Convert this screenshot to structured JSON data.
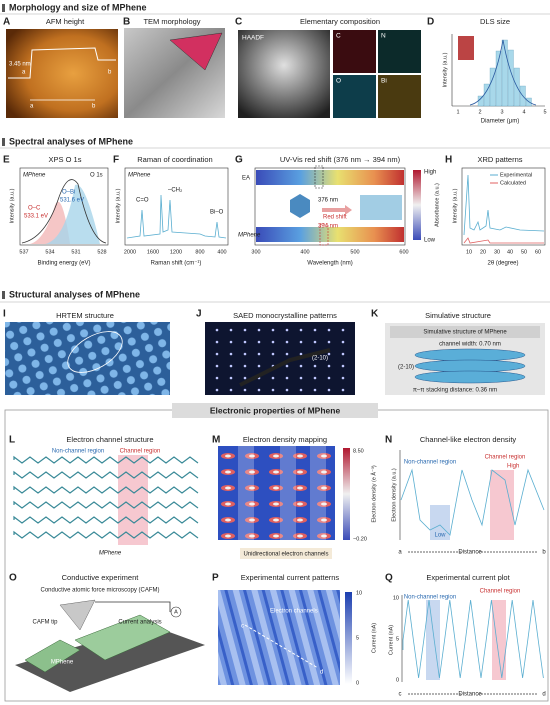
{
  "sections": [
    "Morphology and size of MPhene",
    "Spectral analyses of MPhene",
    "Structural analyses of MPhene",
    "Electronic properties of MPhene"
  ],
  "panels": {
    "A": {
      "letter": "A",
      "title": "AFM height",
      "notes": [
        "3.45 nm",
        "a",
        "b",
        "a",
        "b"
      ]
    },
    "B": {
      "letter": "B",
      "title": "TEM morphology"
    },
    "C": {
      "letter": "C",
      "title": "Elementary composition",
      "notes": [
        "HAADF",
        "C",
        "N",
        "O",
        "Bi"
      ]
    },
    "D": {
      "letter": "D",
      "title": "DLS size",
      "y_label": "Intensity (a.u.)",
      "x_label": "Diameter (μm)",
      "x_ticks": [
        "1",
        "2",
        "3",
        "4",
        "5"
      ]
    },
    "E": {
      "letter": "E",
      "title": "XPS O 1s",
      "notes": [
        "MPhene",
        "O 1s",
        "O–Bi",
        "531.6 eV",
        "O–C",
        "533.1 eV"
      ],
      "y_label": "Intensity (a.u.)",
      "x_label": "Binding energy (eV)",
      "x_ticks": [
        "537",
        "534",
        "531",
        "528"
      ]
    },
    "F": {
      "letter": "F",
      "title": "Raman of coordination",
      "notes": [
        "MPhene",
        "C=O",
        "–CH₂",
        "Bi–O"
      ],
      "y_label": "Intensity (a.u.)",
      "x_label": "Raman shift (cm⁻¹)",
      "x_ticks": [
        "2000",
        "1600",
        "1200",
        "800",
        "400"
      ]
    },
    "G": {
      "letter": "G",
      "title": "UV-Vis red shift (376 nm → 394 nm)",
      "notes": [
        "EA",
        "MPhene",
        "376 nm",
        "Red shift",
        "394 nm",
        "High",
        "Low"
      ],
      "colorbar_label": "Absorbance (a.u.)",
      "x_label": "Wavelength (nm)",
      "x_ticks": [
        "300",
        "400",
        "500",
        "600"
      ]
    },
    "H": {
      "letter": "H",
      "title": "XRD patterns",
      "legend": [
        "Experimental",
        "Calculated"
      ],
      "y_label": "Intensity (a.u.)",
      "x_label": "2θ (degree)",
      "x_ticks": [
        "10",
        "20",
        "30",
        "40",
        "50",
        "60"
      ]
    },
    "I": {
      "letter": "I",
      "title": "HRTEM structure"
    },
    "J": {
      "letter": "J",
      "title": "SAED monocrystalline patterns",
      "notes": [
        "(2-10)"
      ]
    },
    "K": {
      "letter": "K",
      "title": "Simulative structure",
      "notes": [
        "Simulative structure of MPhene",
        "channel width: 0.70 nm",
        "(2-10)",
        "π–π stacking distance: 0.36 nm"
      ]
    },
    "L": {
      "letter": "L",
      "title": "Electron channel structure",
      "notes": [
        "Non-channel region",
        "Channel region",
        "MPhene"
      ]
    },
    "M": {
      "letter": "M",
      "title": "Electron density mapping",
      "colorbar_ticks": [
        "8.50",
        "−0.20"
      ],
      "colorbar_label": "Electron density (e Å⁻³)",
      "notes": [
        "Unidirectional electron channels"
      ]
    },
    "N": {
      "letter": "N",
      "title": "Channel-like electron density",
      "notes": [
        "Non-channel region",
        "Channel region",
        "High",
        "Low"
      ],
      "y_label": "Electron density (a.u.)",
      "x_axis": [
        "a",
        "Distance",
        "b"
      ]
    },
    "O": {
      "letter": "O",
      "title": "Conductive experiment",
      "notes": [
        "Conductive atomic force microscopy (CAFM)",
        "CAFM tip",
        "Current analysis",
        "MPhene",
        "Substrate",
        "A"
      ]
    },
    "P": {
      "letter": "P",
      "title": "Experimental current patterns",
      "notes": [
        "Electron channels",
        "c",
        "d"
      ],
      "colorbar_ticks": [
        "10",
        "5",
        "0"
      ],
      "colorbar_label": "Current (nA)"
    },
    "Q": {
      "letter": "Q",
      "title": "Experimental current plot",
      "notes": [
        "Non-channel region",
        "Channel region"
      ],
      "y_ticks": [
        "10",
        "5",
        "0"
      ],
      "y_label": "Current (nA)",
      "x_axis": [
        "c",
        "Distance",
        "d"
      ]
    }
  }
}
